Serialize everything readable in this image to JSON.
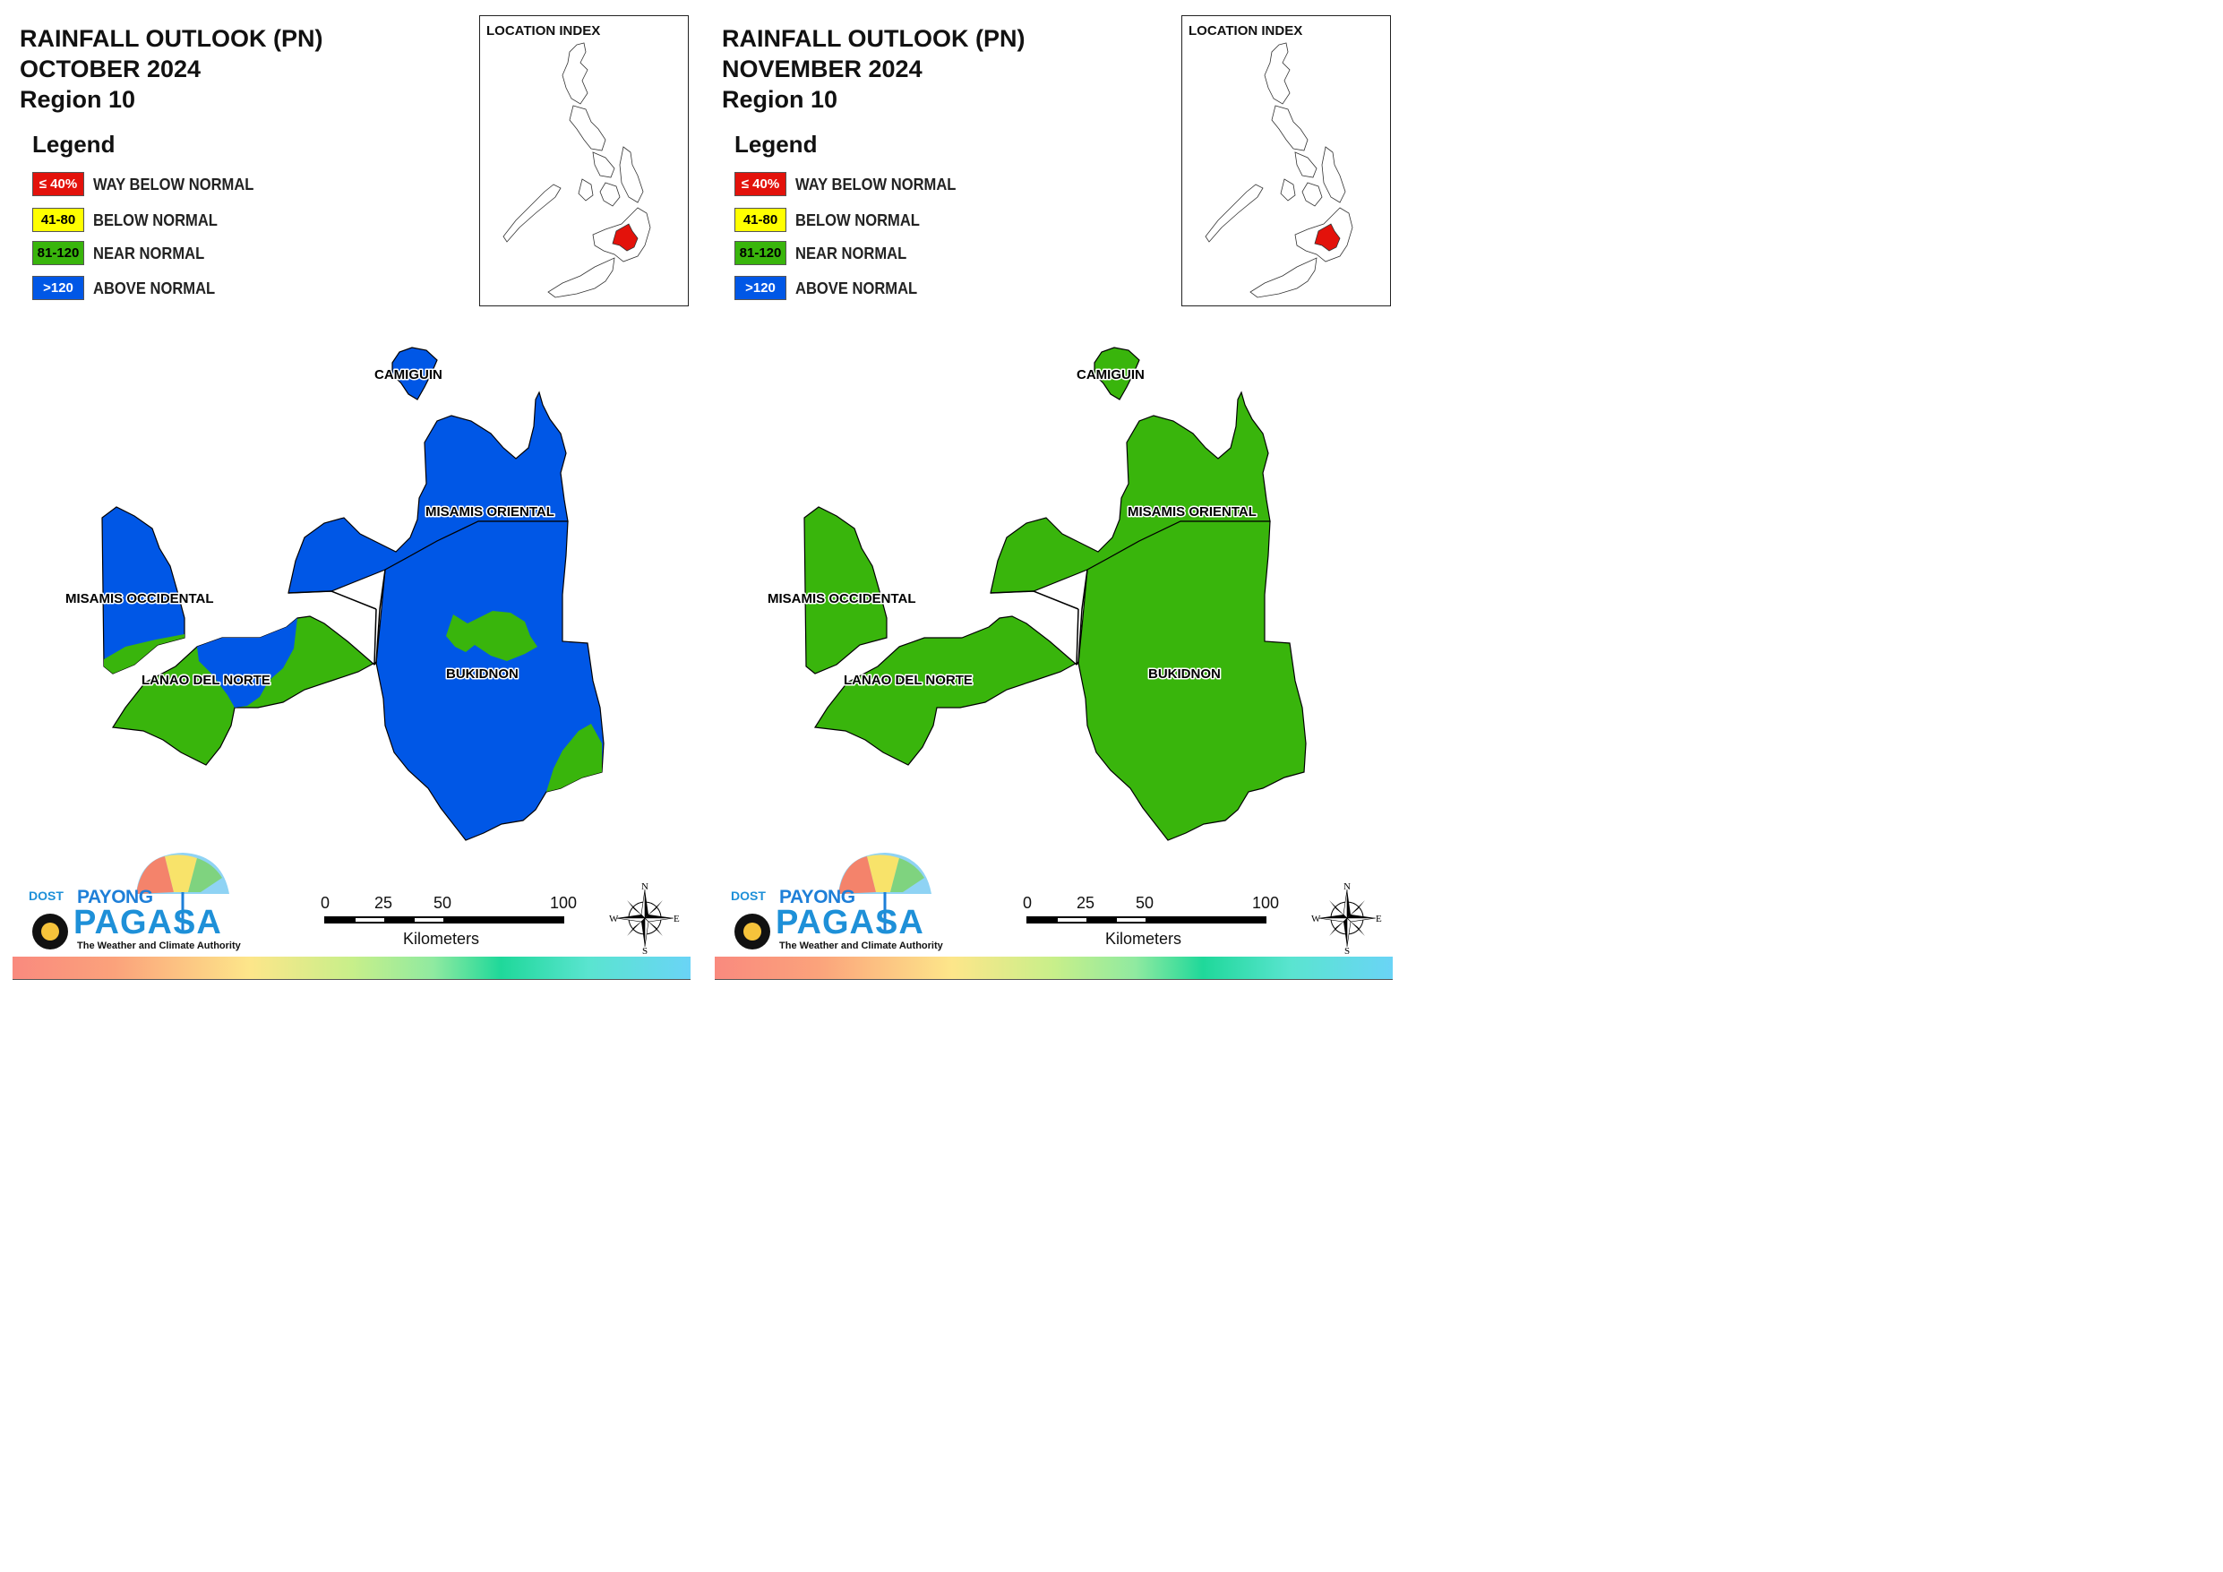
{
  "panels": [
    {
      "title_lines": [
        "RAINFALL OUTLOOK (PN)",
        "OCTOBER 2024",
        "Region 10"
      ],
      "legend": {
        "title": "Legend",
        "items": [
          {
            "range": "≤ 40%",
            "label": "WAY BELOW NORMAL",
            "color": "#e3120b",
            "text_color": "#ffffff"
          },
          {
            "range": "41-80",
            "label": "BELOW NORMAL",
            "color": "#ffff00",
            "text_color": "#000000"
          },
          {
            "range": "81-120",
            "label": "NEAR NORMAL",
            "color": "#39b50c",
            "text_color": "#000000"
          },
          {
            "range": ">120",
            "label": "ABOVE NORMAL",
            "color": "#0057e6",
            "text_color": "#ffffff"
          }
        ]
      },
      "location_index": {
        "label": "LOCATION INDEX"
      },
      "provinces": [
        {
          "name": "CAMIGUIN",
          "category": "ABOVE NORMAL"
        },
        {
          "name": "MISAMIS ORIENTAL",
          "category": "ABOVE NORMAL"
        },
        {
          "name": "MISAMIS OCCIDENTAL",
          "category": "ABOVE NORMAL"
        },
        {
          "name": "LANAO DEL NORTE",
          "category": "NEAR NORMAL"
        },
        {
          "name": "BUKIDNON",
          "category": "ABOVE NORMAL"
        }
      ],
      "scale": {
        "ticks": [
          "0",
          "25",
          "50",
          "100"
        ],
        "unit": "Kilometers"
      },
      "compass": {
        "n": "N",
        "s": "S",
        "e": "E",
        "w": "W"
      },
      "logo": {
        "agency": "DOST",
        "brand_top": "PAYONG",
        "brand_main": "PAGASA",
        "tagline": "The Weather and Climate Authority"
      }
    },
    {
      "title_lines": [
        "RAINFALL OUTLOOK (PN)",
        "NOVEMBER 2024",
        "Region 10"
      ],
      "legend": {
        "title": "Legend",
        "items": [
          {
            "range": "≤ 40%",
            "label": "WAY BELOW NORMAL",
            "color": "#e3120b",
            "text_color": "#ffffff"
          },
          {
            "range": "41-80",
            "label": "BELOW NORMAL",
            "color": "#ffff00",
            "text_color": "#000000"
          },
          {
            "range": "81-120",
            "label": "NEAR NORMAL",
            "color": "#39b50c",
            "text_color": "#000000"
          },
          {
            "range": ">120",
            "label": "ABOVE NORMAL",
            "color": "#0057e6",
            "text_color": "#ffffff"
          }
        ]
      },
      "location_index": {
        "label": "LOCATION INDEX"
      },
      "provinces": [
        {
          "name": "CAMIGUIN",
          "category": "NEAR NORMAL"
        },
        {
          "name": "MISAMIS ORIENTAL",
          "category": "NEAR NORMAL"
        },
        {
          "name": "MISAMIS OCCIDENTAL",
          "category": "NEAR NORMAL"
        },
        {
          "name": "LANAO DEL NORTE",
          "category": "NEAR NORMAL"
        },
        {
          "name": "BUKIDNON",
          "category": "NEAR NORMAL"
        }
      ],
      "scale": {
        "ticks": [
          "0",
          "25",
          "50",
          "100"
        ],
        "unit": "Kilometers"
      },
      "compass": {
        "n": "N",
        "s": "S",
        "e": "E",
        "w": "W"
      },
      "logo": {
        "agency": "DOST",
        "brand_top": "PAYONG",
        "brand_main": "PAGASA",
        "tagline": "The Weather and Climate Authority"
      }
    }
  ],
  "colors": {
    "above_normal": "#0057e6",
    "near_normal": "#39b50c",
    "highlight_region": "#e3120b"
  }
}
